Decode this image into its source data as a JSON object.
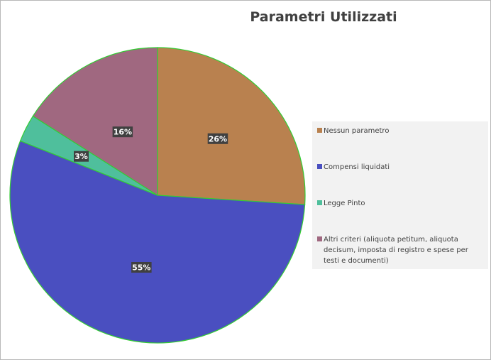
{
  "chart_data": {
    "type": "pie",
    "title": "Parametri Utilizzati",
    "categories": [
      "Nessun parametro",
      "Compensi liquidati",
      "Legge Pinto",
      "Altri criteri (aliquota petitum, aliquota decisum, imposta di registro e spese per testi e documenti)"
    ],
    "values": [
      26,
      55,
      3,
      16
    ],
    "data_labels": [
      "26%",
      "55%",
      "3%",
      "16%"
    ],
    "colors": [
      "#b9814f",
      "#4a4fc0",
      "#4fbf9c",
      "#a06880"
    ],
    "slice_border_color": "#33cc33",
    "legend_position": "right"
  }
}
